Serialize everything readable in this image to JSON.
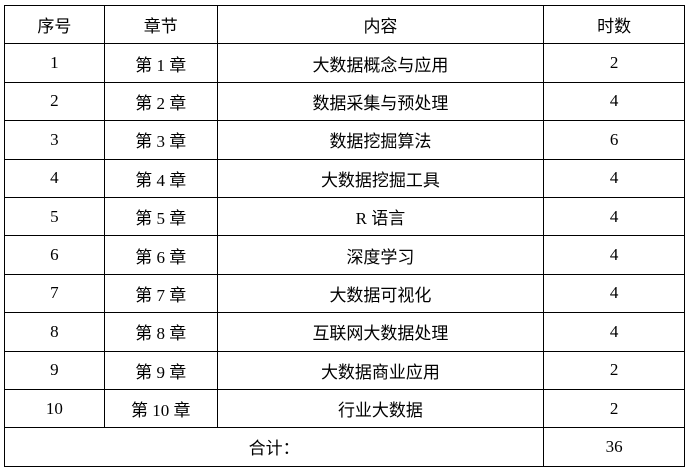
{
  "headers": [
    "序号",
    "章节",
    "内容",
    "时数"
  ],
  "rows": [
    [
      "1",
      "第 1 章",
      "大数据概念与应用",
      "2"
    ],
    [
      "2",
      "第 2 章",
      "数据采集与预处理",
      "4"
    ],
    [
      "3",
      "第 3 章",
      "数据挖掘算法",
      "6"
    ],
    [
      "4",
      "第 4 章",
      "大数据挖掘工具",
      "4"
    ],
    [
      "5",
      "第 5 章",
      "R 语言",
      "4"
    ],
    [
      "6",
      "第 6 章",
      "深度学习",
      "4"
    ],
    [
      "7",
      "第 7 章",
      "大数据可视化",
      "4"
    ],
    [
      "8",
      "第 8 章",
      "互联网大数据处理",
      "4"
    ],
    [
      "9",
      "第 9 章",
      "大数据商业应用",
      "2"
    ],
    [
      "10",
      "第 10 章",
      "行业大数据",
      "2"
    ]
  ],
  "total": {
    "label": "合计：",
    "value": "36"
  }
}
